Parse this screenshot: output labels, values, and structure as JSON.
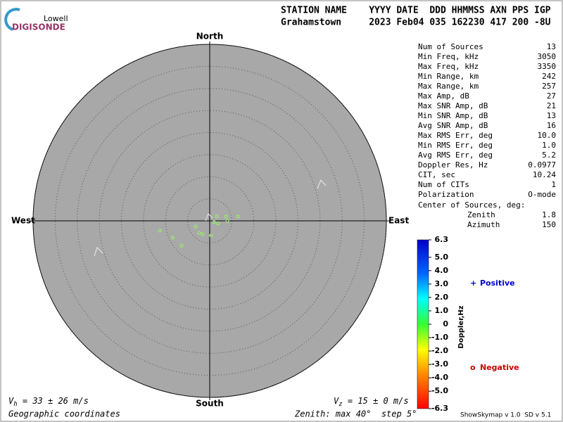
{
  "logo": {
    "top": "Lowell",
    "bottom": "DIGISONDE"
  },
  "header": {
    "labels": "STATION NAME    YYYY DATE  DDD HHMMSS AXN PPS IGP",
    "values": "Grahamstown     2023 Feb04 035 162230 417 200 -8U"
  },
  "chart_data": {
    "type": "skymap",
    "directions": {
      "north": "North",
      "south": "South",
      "east": "East",
      "west": "West"
    },
    "rlim": [
      0,
      40
    ],
    "rticks": [
      5,
      10,
      15,
      20,
      25,
      30,
      35,
      40
    ],
    "x": [
      3.7,
      1.6,
      6.4,
      4.0,
      1.0,
      -3.2,
      -2.4,
      -1.6,
      0.3,
      -11.3,
      -8.4,
      -6.4,
      1.9
    ],
    "values": [
      1.0,
      1.0,
      1.0,
      0,
      -0.3,
      -1.3,
      -2.7,
      -3.0,
      -3.3,
      -2.2,
      -3.8,
      -5.6,
      -0.6
    ],
    "color": "#99ee66",
    "colorbar": {
      "label": "Doppler,Hz",
      "ylim": [
        -6.3,
        6.3
      ],
      "yticks": [
        {
          "value": 6.3,
          "label": "6.3"
        },
        {
          "value": 5,
          "label": "5.0"
        },
        {
          "value": 4,
          "label": "4.0"
        },
        {
          "value": 3,
          "label": "3.0"
        },
        {
          "value": 2,
          "label": "2.0"
        },
        {
          "value": 1,
          "label": "1.0"
        },
        0,
        {
          "value": -1,
          "label": "-1.0"
        },
        {
          "value": -2,
          "label": "-2.0"
        },
        {
          "value": -3,
          "label": "-3.0"
        },
        {
          "value": -4,
          "label": "-4.0"
        },
        {
          "value": -5,
          "label": "-5.0"
        },
        {
          "value": -6.3,
          "label": "-6.3"
        }
      ]
    },
    "legend": {
      "positive_symbol": "+",
      "positive": "Positive",
      "negative_symbol": "o",
      "negative": "Negative"
    }
  },
  "stats": [
    {
      "label": "Num of Sources",
      "value": "13"
    },
    {
      "label": "Min Freq, kHz",
      "value": "3050"
    },
    {
      "label": "Max Freq, kHz",
      "value": "3350"
    },
    {
      "label": "Min Range, km",
      "value": "242"
    },
    {
      "label": "Max Range, km",
      "value": "257"
    },
    {
      "label": "Max Amp, dB",
      "value": "27"
    },
    {
      "label": "Max SNR Amp, dB",
      "value": "21"
    },
    {
      "label": "Min SNR Amp, dB",
      "value": "13"
    },
    {
      "label": "Avg SNR Amp, dB",
      "value": "16"
    },
    {
      "label": "Max RMS Err, deg",
      "value": "10.0"
    },
    {
      "label": "Min RMS Err, deg",
      "value": "1.0"
    },
    {
      "label": "Avg RMS Err, deg",
      "value": "5.2"
    },
    {
      "label": "Doppler Res, Hz",
      "value": "0.0977"
    },
    {
      "label": "CIT, sec",
      "value": "10.24"
    },
    {
      "label": "Num of CITs",
      "value": "1"
    },
    {
      "label": "Polarization",
      "value": "O-mode"
    }
  ],
  "center": {
    "title": "Center of Sources, deg:",
    "zenith_label": "Zenith",
    "zenith": "1.8",
    "azimuth_label": "Azimuth",
    "azimuth": "150"
  },
  "footer": {
    "vh_symbol": "V",
    "vh_sub": "h",
    "vh_text": " = 33 ± 26 m/s",
    "vz_symbol": "V",
    "vz_sub": "z",
    "vz_text": " = 15 ± 0 m/s",
    "coords": "Geographic coordinates",
    "zenith": "Zenith: max 40°  step 5°",
    "version": "ShowSkymap v 1.0  SD v 5.1"
  }
}
